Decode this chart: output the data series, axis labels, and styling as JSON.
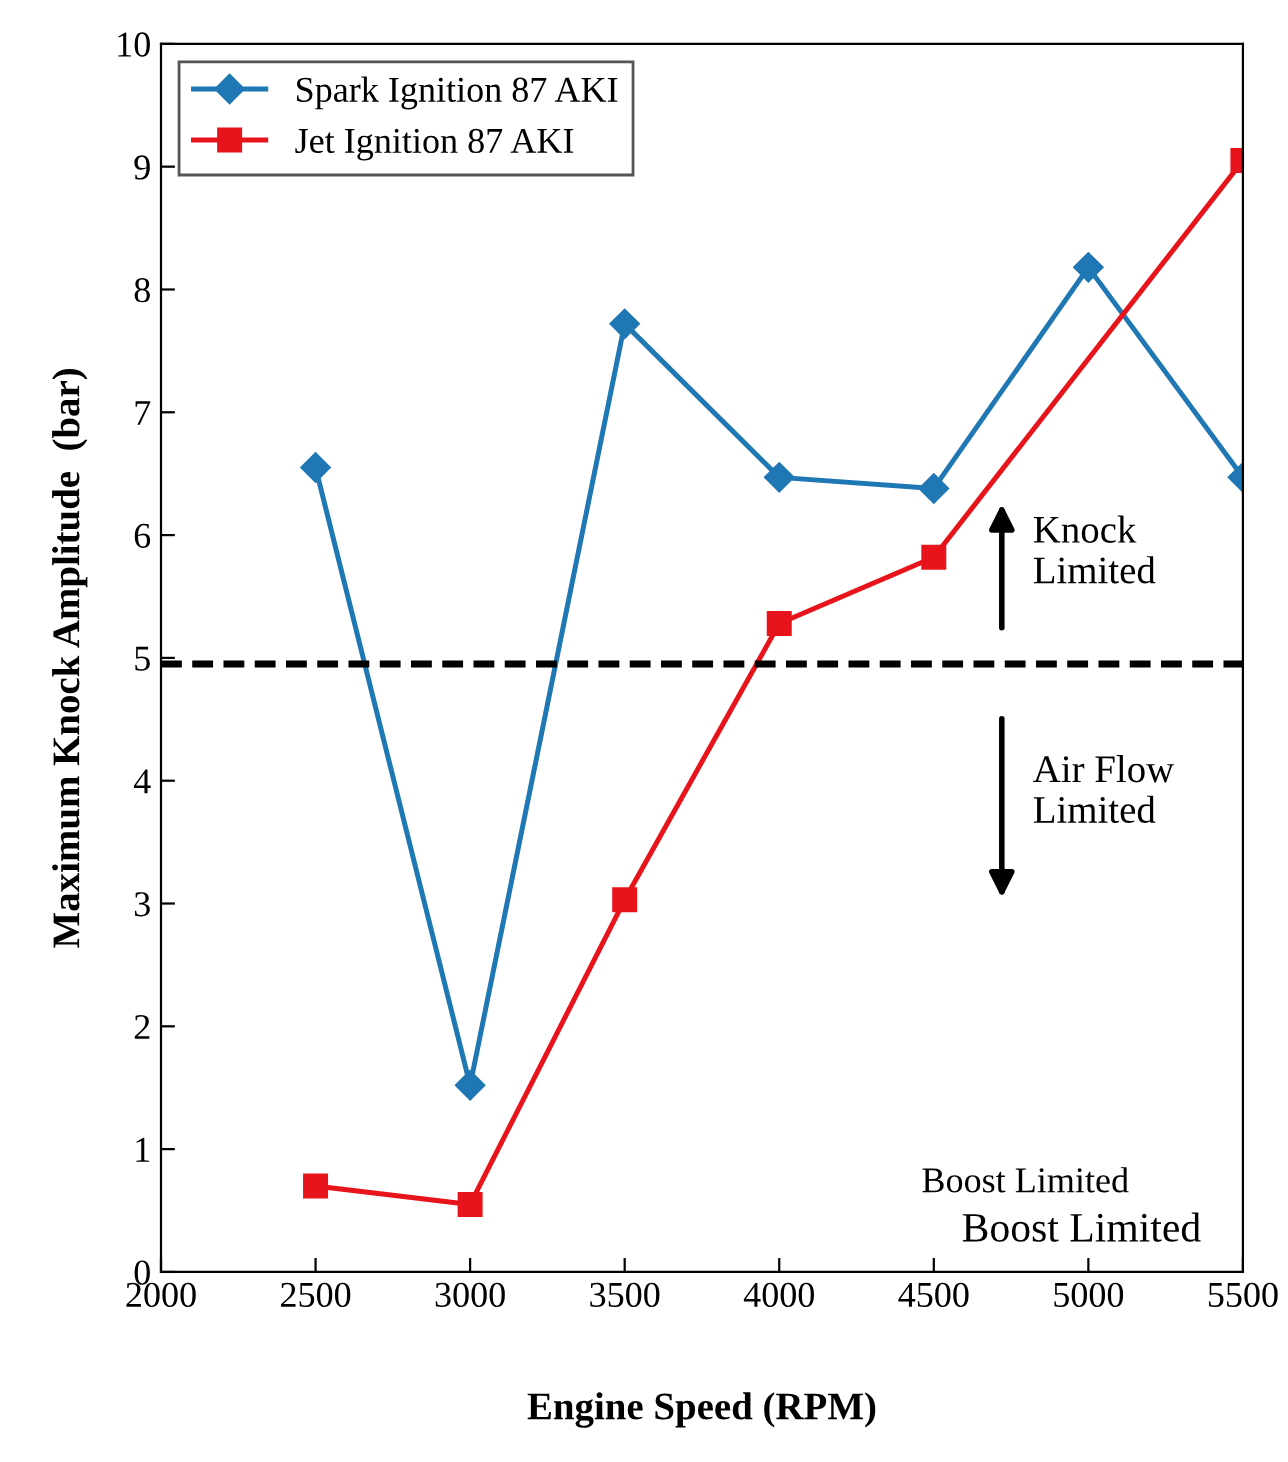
{
  "chart_data": {
    "type": "line",
    "xlabel": "Engine Speed (RPM)",
    "ylabel": "Maximum Knock Amplitude  (bar)",
    "series": [
      {
        "name": "Spark Ignition 87 AKI",
        "color": "#1f77b4",
        "marker": "diamond",
        "x": [
          2500,
          3000,
          3500,
          4000,
          4500,
          5000,
          5500
        ],
        "values": [
          6.55,
          1.52,
          7.72,
          6.47,
          6.38,
          8.18,
          6.47
        ]
      },
      {
        "name": "Jet Ignition 87 AKI",
        "color": "#e8141c",
        "marker": "square",
        "x": [
          2500,
          3000,
          3500,
          4000,
          4500,
          5500
        ],
        "values": [
          0.7,
          0.55,
          3.03,
          5.28,
          5.82,
          9.05
        ]
      }
    ],
    "xlim": [
      2000,
      5500
    ],
    "xticks": [
      2000,
      2500,
      3000,
      3500,
      4000,
      4500,
      5000,
      5500
    ],
    "ylim": [
      0,
      10
    ],
    "yticks": [
      0,
      1,
      2,
      3,
      4,
      5,
      6,
      7,
      8,
      9,
      10
    ],
    "ref_lines": [
      {
        "axis": "y",
        "value": 4.95,
        "color": "#000000",
        "line_style": "dashed"
      }
    ],
    "annotations": [
      "Knock\nLimited",
      "Air Flow\nLimited",
      "Boost Limited",
      "Boost Limited"
    ],
    "legend": "top left",
    "grid": false,
    "line_style": "solid"
  }
}
